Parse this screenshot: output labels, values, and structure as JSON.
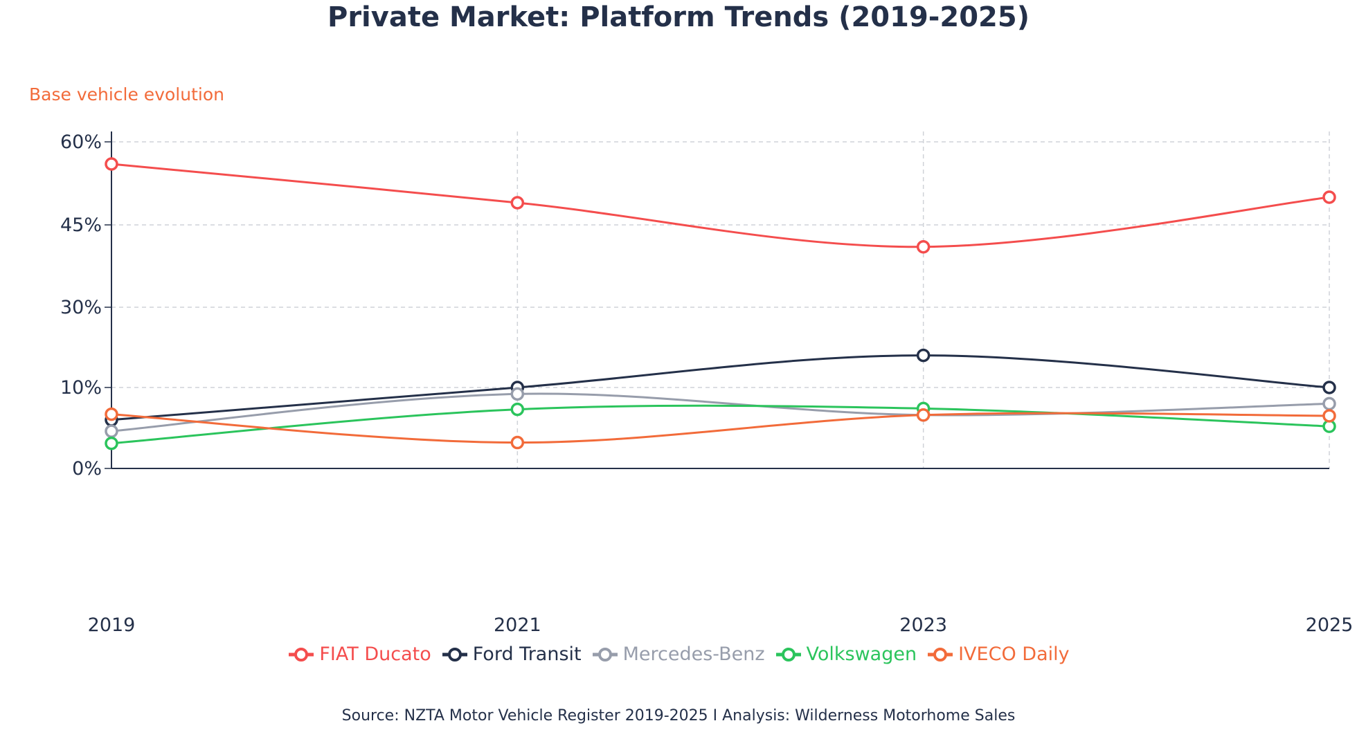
{
  "chart_data": {
    "type": "line",
    "title": "Private Market: Platform Trends (2019-2025)",
    "subtitle": "Base vehicle evolution",
    "x": [
      "2019",
      "2021",
      "2023",
      "2025"
    ],
    "y_ticks": [
      "0%",
      "10%",
      "30%",
      "45%",
      "60%"
    ],
    "y_tick_values": [
      0,
      10,
      30,
      45,
      60
    ],
    "y_scale": "categorical-spaced ticks (evenly spaced, unequal values)",
    "grid": true,
    "legend_position": "bottom",
    "series": [
      {
        "name": "FIAT Ducato",
        "color": "#f44d4d",
        "values": [
          56,
          49,
          41,
          50
        ]
      },
      {
        "name": "Ford Transit",
        "color": "#243049",
        "values": [
          6,
          10,
          18,
          10
        ]
      },
      {
        "name": "Mercedes-Benz",
        "color": "#979dab",
        "values": [
          4.6,
          9.2,
          6.6,
          8
        ]
      },
      {
        "name": "Volkswagen",
        "color": "#2bc45c",
        "values": [
          3.1,
          7.3,
          7.4,
          5.2
        ]
      },
      {
        "name": "IVECO Daily",
        "color": "#f26b3a",
        "values": [
          6.7,
          3.2,
          6.6,
          6.5
        ]
      }
    ],
    "source": "Source: NZTA Motor Vehicle Register 2019-2025 I Analysis: Wilderness Motorhome Sales"
  }
}
